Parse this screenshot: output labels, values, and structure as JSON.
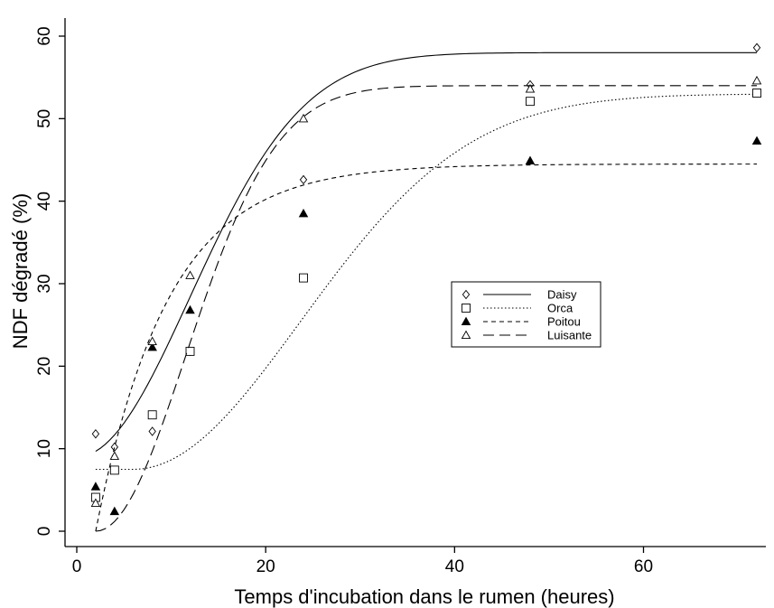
{
  "chart_data": {
    "type": "scatter",
    "xlabel": "Temps d'incubation dans le rumen (heures)",
    "ylabel": "NDF dégradé (%)",
    "xlim": [
      0,
      73
    ],
    "ylim": [
      -2,
      62
    ],
    "xticks": [
      0,
      20,
      40,
      60
    ],
    "yticks": [
      0,
      10,
      20,
      30,
      40,
      50,
      60
    ],
    "grid": false,
    "legend_position": "center-right",
    "series": [
      {
        "name": "Daisy",
        "marker": "diamond",
        "line_style": "solid",
        "x": [
          2,
          4,
          8,
          12,
          24,
          48,
          72
        ],
        "y": [
          11.8,
          10.2,
          12.1,
          21.8,
          42.6,
          54.1,
          58.6
        ],
        "fit": {
          "a": 9.0,
          "b": 49.0,
          "k": 0.0035,
          "lag": 0
        }
      },
      {
        "name": "Orca",
        "marker": "square",
        "line_style": "dotted",
        "x": [
          2,
          4,
          8,
          12,
          24,
          48,
          72
        ],
        "y": [
          4.1,
          7.4,
          14.1,
          21.8,
          30.7,
          52.1,
          53.1
        ],
        "fit": {
          "a": 7.5,
          "b": 45.5,
          "k": 0.0016,
          "lag": 6
        }
      },
      {
        "name": "Poitou",
        "marker": "filled-triangle",
        "line_style": "short-dashed",
        "x": [
          2,
          4,
          8,
          12,
          24,
          48,
          72
        ],
        "y": [
          5.4,
          2.4,
          22.3,
          26.8,
          38.5,
          44.9,
          47.3
        ],
        "fit": {
          "a": 0.0,
          "b": 44.5,
          "k": 0.13,
          "lag": 2
        }
      },
      {
        "name": "Luisante",
        "marker": "open-triangle",
        "line_style": "long-dashed",
        "x": [
          2,
          4,
          8,
          12,
          24,
          48,
          72
        ],
        "y": [
          3.4,
          9.1,
          23.0,
          31.0,
          50.0,
          53.6,
          54.6
        ],
        "fit": {
          "a": 0.0,
          "b": 54.0,
          "k": 0.0055,
          "lag": 2
        }
      }
    ]
  }
}
